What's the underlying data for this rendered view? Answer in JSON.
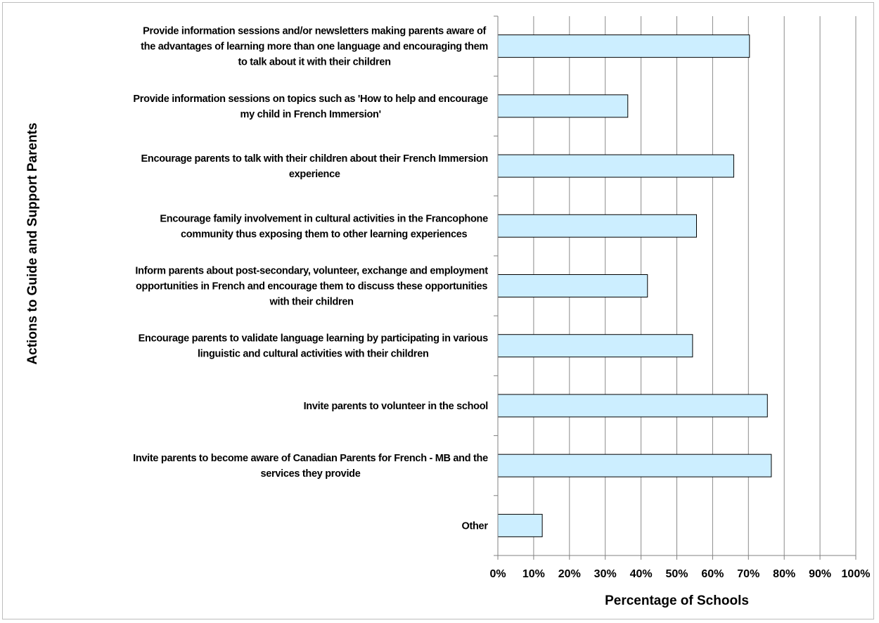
{
  "chart_data": {
    "type": "bar",
    "orientation": "horizontal",
    "title": "",
    "xlabel": "Percentage of Schools",
    "ylabel": "Actions to Guide and Support Parents",
    "xlim": [
      0,
      100
    ],
    "x_ticks": [
      "0%",
      "10%",
      "20%",
      "30%",
      "40%",
      "50%",
      "60%",
      "70%",
      "80%",
      "90%",
      "100%"
    ],
    "grid": "vertical",
    "bar_color": "#cceeff",
    "bar_edge_color": "#000000",
    "categories": [
      [
        "Provide information sessions and/or newsletters making parents aware of",
        "the advantages of learning more than one language and encouraging them",
        "to talk about it with their children"
      ],
      [
        "Provide information sessions on topics such as 'How to help and encourage",
        "my child in French Immersion'"
      ],
      [
        "Encourage parents to talk with their children about their French Immersion",
        "experience"
      ],
      [
        "Encourage family involvement in cultural activities in the Francophone",
        "community thus exposing them to other learning experiences"
      ],
      [
        "Inform parents about post-secondary, volunteer, exchange and employment",
        "opportunities in French and encourage them to discuss these opportunities",
        "with their children"
      ],
      [
        "Encourage parents to validate language learning by participating in various",
        "linguistic and cultural activities with their children"
      ],
      [
        "Invite parents to volunteer in the school"
      ],
      [
        "Invite parents to become aware of Canadian Parents for French - MB and the",
        "services they provide"
      ],
      [
        "Other"
      ]
    ],
    "values": [
      70.3,
      36.3,
      65.9,
      55.5,
      41.8,
      54.4,
      75.3,
      76.4,
      12.4
    ]
  }
}
